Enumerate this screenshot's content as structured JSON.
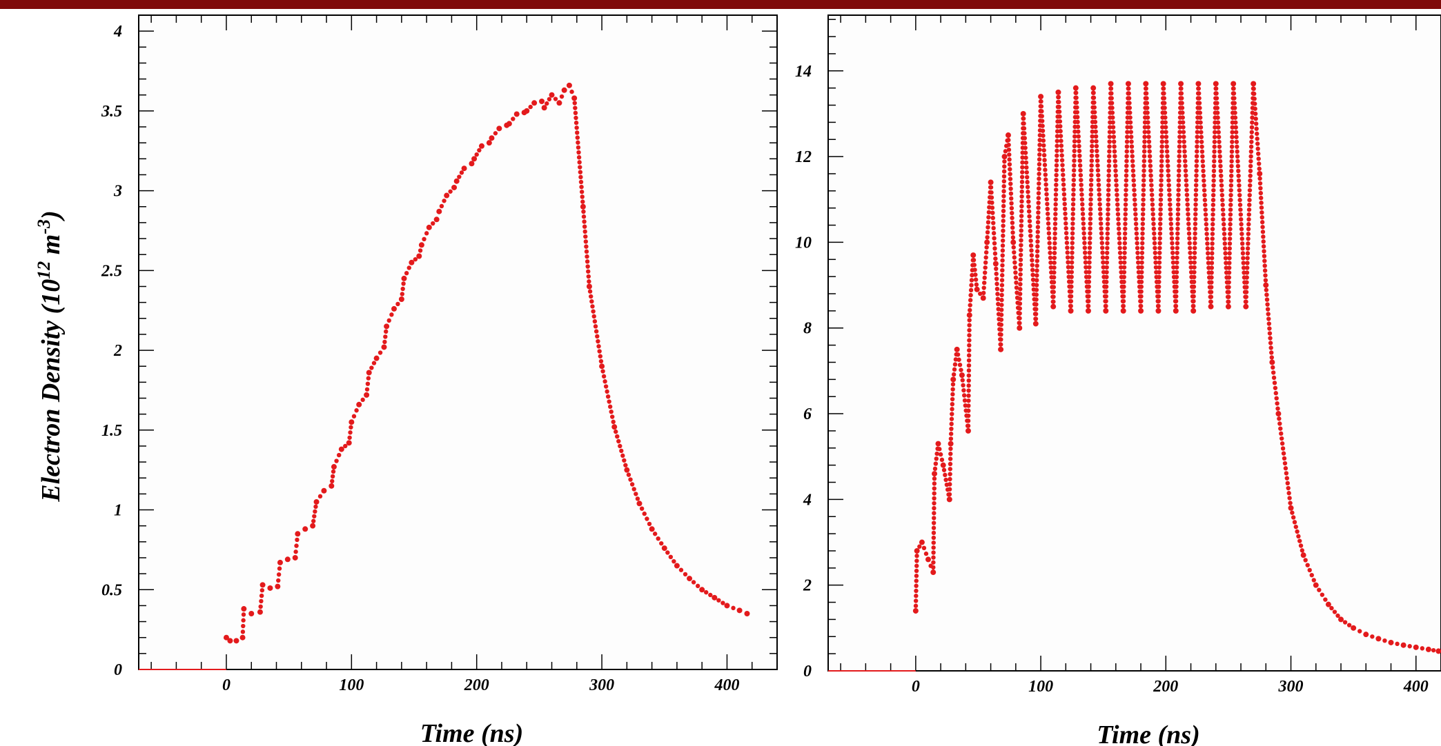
{
  "colors": {
    "banner": "#7f0a0a",
    "marker": "#e31a1c",
    "frame": "#000000"
  },
  "chart_data": [
    {
      "type": "scatter",
      "title": "",
      "xlabel": "Time (ns)",
      "ylabel_main": "Electron Density (10",
      "ylabel_exp1": "12",
      "ylabel_mid": " m",
      "ylabel_exp2": "-3",
      "ylabel_end": ")",
      "xlim": [
        -70,
        440
      ],
      "ylim": [
        0,
        4.1
      ],
      "xticks": [
        0,
        100,
        200,
        300,
        400
      ],
      "xtick_labels": [
        "0",
        "100",
        "200",
        "300",
        "400"
      ],
      "yticks": [
        0,
        0.5,
        1,
        1.5,
        2,
        2.5,
        3,
        3.5,
        4
      ],
      "ytick_labels": [
        "0",
        "0.5",
        "1",
        "1.5",
        "2",
        "2.5",
        "3",
        "3.5",
        "4"
      ],
      "grid": false,
      "series": [
        {
          "marker_color": "#e31a1c",
          "points": [
            [
              -70,
              0
            ],
            [
              0,
              0
            ],
            [
              0,
              0.2
            ],
            [
              3,
              0.18
            ],
            [
              8,
              0.18
            ],
            [
              13,
              0.2
            ],
            [
              14,
              0.38
            ],
            [
              20,
              0.35
            ],
            [
              27,
              0.36
            ],
            [
              29,
              0.53
            ],
            [
              35,
              0.51
            ],
            [
              41,
              0.52
            ],
            [
              43,
              0.67
            ],
            [
              49,
              0.69
            ],
            [
              55,
              0.7
            ],
            [
              57,
              0.85
            ],
            [
              63,
              0.88
            ],
            [
              69,
              0.9
            ],
            [
              72,
              1.05
            ],
            [
              78,
              1.12
            ],
            [
              84,
              1.15
            ],
            [
              86,
              1.27
            ],
            [
              92,
              1.38
            ],
            [
              98,
              1.42
            ],
            [
              100,
              1.55
            ],
            [
              106,
              1.66
            ],
            [
              112,
              1.72
            ],
            [
              114,
              1.86
            ],
            [
              120,
              1.95
            ],
            [
              126,
              2.02
            ],
            [
              128,
              2.15
            ],
            [
              134,
              2.26
            ],
            [
              140,
              2.32
            ],
            [
              142,
              2.45
            ],
            [
              148,
              2.55
            ],
            [
              154,
              2.59
            ],
            [
              156,
              2.66
            ],
            [
              162,
              2.77
            ],
            [
              168,
              2.82
            ],
            [
              170,
              2.87
            ],
            [
              176,
              2.97
            ],
            [
              182,
              3.02
            ],
            [
              184,
              3.06
            ],
            [
              190,
              3.14
            ],
            [
              196,
              3.17
            ],
            [
              198,
              3.2
            ],
            [
              204,
              3.28
            ],
            [
              210,
              3.3
            ],
            [
              212,
              3.33
            ],
            [
              218,
              3.39
            ],
            [
              224,
              3.41
            ],
            [
              226,
              3.42
            ],
            [
              232,
              3.48
            ],
            [
              238,
              3.49
            ],
            [
              240,
              3.5
            ],
            [
              246,
              3.55
            ],
            [
              252,
              3.56
            ],
            [
              254,
              3.52
            ],
            [
              260,
              3.6
            ],
            [
              266,
              3.55
            ],
            [
              270,
              3.63
            ],
            [
              274,
              3.66
            ],
            [
              278,
              3.58
            ],
            [
              285,
              2.9
            ],
            [
              290,
              2.4
            ],
            [
              300,
              1.9
            ],
            [
              310,
              1.52
            ],
            [
              320,
              1.25
            ],
            [
              330,
              1.04
            ],
            [
              340,
              0.88
            ],
            [
              350,
              0.76
            ],
            [
              360,
              0.65
            ],
            [
              370,
              0.57
            ],
            [
              380,
              0.5
            ],
            [
              390,
              0.45
            ],
            [
              400,
              0.4
            ],
            [
              410,
              0.37
            ],
            [
              416,
              0.35
            ]
          ]
        }
      ]
    },
    {
      "type": "scatter",
      "title": "",
      "xlabel": "Time (ns)",
      "ylabel": "",
      "xlim": [
        -70,
        420
      ],
      "ylim": [
        0,
        15.3
      ],
      "xticks": [
        0,
        100,
        200,
        300,
        400
      ],
      "xtick_labels": [
        "0",
        "100",
        "200",
        "300",
        "400"
      ],
      "yticks": [
        0,
        2,
        4,
        6,
        8,
        10,
        12,
        14
      ],
      "ytick_labels": [
        "0",
        "2",
        "4",
        "6",
        "8",
        "10",
        "12",
        "14"
      ],
      "grid": false,
      "series": [
        {
          "marker_color": "#e31a1c",
          "points": [
            [
              -70,
              0
            ],
            [
              0,
              0
            ],
            [
              0,
              1.4
            ],
            [
              1,
              2.8
            ],
            [
              5,
              3.0
            ],
            [
              10,
              2.6
            ],
            [
              14,
              2.3
            ],
            [
              15,
              4.6
            ],
            [
              18,
              5.3
            ],
            [
              22,
              4.8
            ],
            [
              27,
              4.0
            ],
            [
              28,
              5.3
            ],
            [
              30,
              6.8
            ],
            [
              33,
              7.5
            ],
            [
              37,
              6.9
            ],
            [
              42,
              5.6
            ],
            [
              43,
              8.3
            ],
            [
              46,
              9.7
            ],
            [
              49,
              8.9
            ],
            [
              54,
              8.7
            ],
            [
              57,
              10.0
            ],
            [
              60,
              11.4
            ],
            [
              64,
              9.5
            ],
            [
              68,
              7.5
            ],
            [
              71,
              12.0
            ],
            [
              74,
              12.5
            ],
            [
              78,
              10.0
            ],
            [
              83,
              8.0
            ],
            [
              86,
              13.0
            ],
            [
              96,
              8.1
            ],
            [
              100,
              13.4
            ],
            [
              110,
              8.5
            ],
            [
              114,
              13.5
            ],
            [
              124,
              8.4
            ],
            [
              128,
              13.6
            ],
            [
              138,
              8.4
            ],
            [
              142,
              13.6
            ],
            [
              152,
              8.4
            ],
            [
              156,
              13.7
            ],
            [
              166,
              8.4
            ],
            [
              170,
              13.7
            ],
            [
              180,
              8.4
            ],
            [
              184,
              13.7
            ],
            [
              194,
              8.4
            ],
            [
              198,
              13.7
            ],
            [
              208,
              8.4
            ],
            [
              212,
              13.7
            ],
            [
              222,
              8.4
            ],
            [
              226,
              13.7
            ],
            [
              236,
              8.5
            ],
            [
              240,
              13.7
            ],
            [
              250,
              8.5
            ],
            [
              254,
              13.7
            ],
            [
              264,
              8.5
            ],
            [
              270,
              13.7
            ],
            [
              275,
              11.6
            ],
            [
              280,
              9.0
            ],
            [
              285,
              7.2
            ],
            [
              290,
              6.0
            ],
            [
              300,
              3.8
            ],
            [
              310,
              2.7
            ],
            [
              320,
              2.0
            ],
            [
              330,
              1.55
            ],
            [
              340,
              1.2
            ],
            [
              350,
              1.0
            ],
            [
              360,
              0.85
            ],
            [
              370,
              0.75
            ],
            [
              380,
              0.66
            ],
            [
              390,
              0.6
            ],
            [
              400,
              0.55
            ],
            [
              410,
              0.5
            ],
            [
              418,
              0.46
            ]
          ]
        }
      ]
    }
  ]
}
